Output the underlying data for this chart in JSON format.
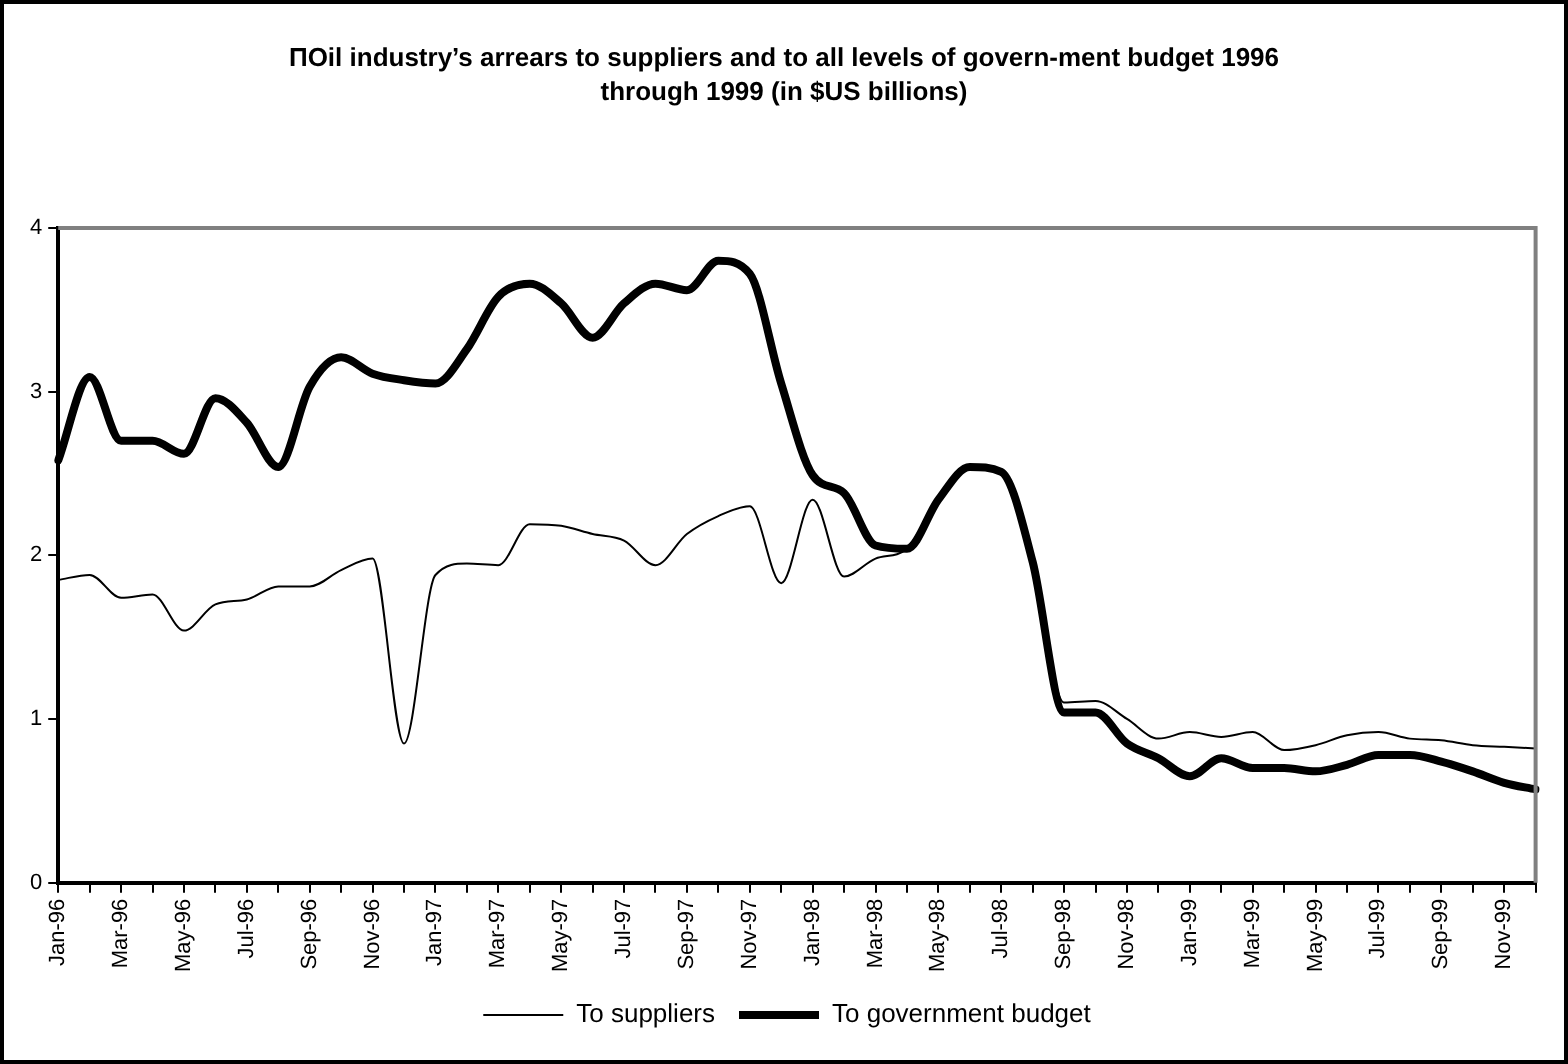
{
  "chart_data": {
    "type": "line",
    "title": "ПOil industry’s arrears to suppliers and to all levels of govern-ment budget 1996 through 1999 (in $US billions)",
    "categories": [
      "Jan-96",
      null,
      "Mar-96",
      null,
      "May-96",
      null,
      "Jul-96",
      null,
      "Sep-96",
      null,
      "Nov-96",
      null,
      "Jan-97",
      null,
      "Mar-97",
      null,
      "May-97",
      null,
      "Jul-97",
      null,
      "Sep-97",
      null,
      "Nov-97",
      null,
      "Jan-98",
      null,
      "Mar-98",
      null,
      "May-98",
      null,
      "Jul-98",
      null,
      "Sep-98",
      null,
      "Nov-98",
      null,
      "Jan-99",
      null,
      "Mar-99",
      null,
      "May-99",
      null,
      "Jul-99",
      null,
      "Sep-99",
      null,
      "Nov-99",
      null
    ],
    "series": [
      {
        "name": "To suppliers",
        "color": "#000000",
        "values": [
          1.85,
          1.88,
          1.74,
          1.76,
          1.54,
          1.7,
          1.73,
          1.81,
          1.81,
          1.91,
          1.98,
          0.85,
          1.88,
          1.95,
          1.94,
          2.19,
          2.18,
          2.13,
          2.09,
          1.94,
          2.13,
          2.24,
          2.3,
          1.83,
          2.34,
          1.87,
          1.98,
          2.04,
          2.36,
          2.55,
          2.51,
          1.98,
          1.1,
          1.11,
          1.0,
          0.88,
          0.92,
          0.89,
          0.92,
          0.81,
          0.84,
          0.9,
          0.92,
          0.88,
          0.87,
          0.84,
          0.83,
          0.82
        ]
      },
      {
        "name": "To government budget",
        "color": "#000000",
        "values": [
          2.58,
          3.09,
          2.7,
          2.7,
          2.62,
          2.96,
          2.81,
          2.54,
          3.03,
          3.21,
          3.11,
          3.07,
          3.05,
          3.26,
          3.58,
          3.66,
          3.54,
          3.33,
          3.54,
          3.66,
          3.62,
          3.8,
          3.72,
          3.05,
          2.49,
          2.38,
          2.06,
          2.04,
          2.34,
          2.54,
          2.51,
          1.96,
          1.04,
          1.04,
          0.85,
          0.76,
          0.65,
          0.76,
          0.7,
          0.7,
          0.68,
          0.72,
          0.78,
          0.78,
          0.74,
          0.68,
          0.61,
          0.57
        ]
      }
    ],
    "ylim": [
      0,
      4
    ],
    "yticks": [
      0,
      1,
      2,
      3,
      4
    ],
    "grid": false,
    "legend": "bottom",
    "marker": "none",
    "line_style": "solid"
  }
}
